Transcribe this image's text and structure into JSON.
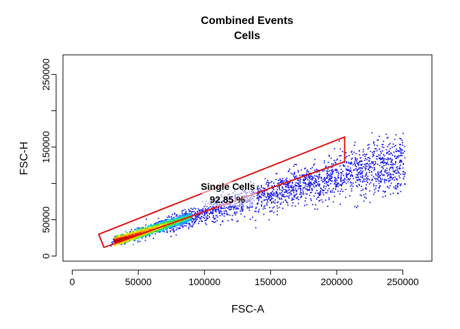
{
  "chart_data": {
    "type": "scatter",
    "title": "Combined Events",
    "subtitle": "Cells",
    "xlabel": "FSC-A",
    "ylabel": "FSC-H",
    "xlim": [
      -7000,
      272000
    ],
    "ylim": [
      -7000,
      277000
    ],
    "x_ticks": [
      0,
      50000,
      100000,
      150000,
      200000,
      250000
    ],
    "x_tick_labels": [
      "0",
      "50000",
      "100000",
      "150000",
      "200000",
      "250000"
    ],
    "y_ticks": [
      0,
      50000,
      100000,
      150000,
      200000,
      250000
    ],
    "y_tick_labels": [
      "0",
      "50000",
      "",
      "150000",
      "",
      "250000"
    ],
    "gate": {
      "name": "Single Cells",
      "percent_label": "92.85 %",
      "color": "#dd1111",
      "vertices": [
        [
          20000,
          30000
        ],
        [
          206000,
          164000
        ],
        [
          206000,
          130000
        ],
        [
          24000,
          12000
        ]
      ]
    },
    "density_colors": [
      "#1a1aee",
      "#1aa0ff",
      "#22ddcc",
      "#44dd22",
      "#eeee00",
      "#ffa000",
      "#ee2200",
      "#aa0000"
    ],
    "population": {
      "x_range": [
        29000,
        252000
      ],
      "ridge": {
        "slope": 0.59,
        "intercept": 1000
      },
      "dense_core_x": [
        32000,
        90000
      ]
    }
  }
}
